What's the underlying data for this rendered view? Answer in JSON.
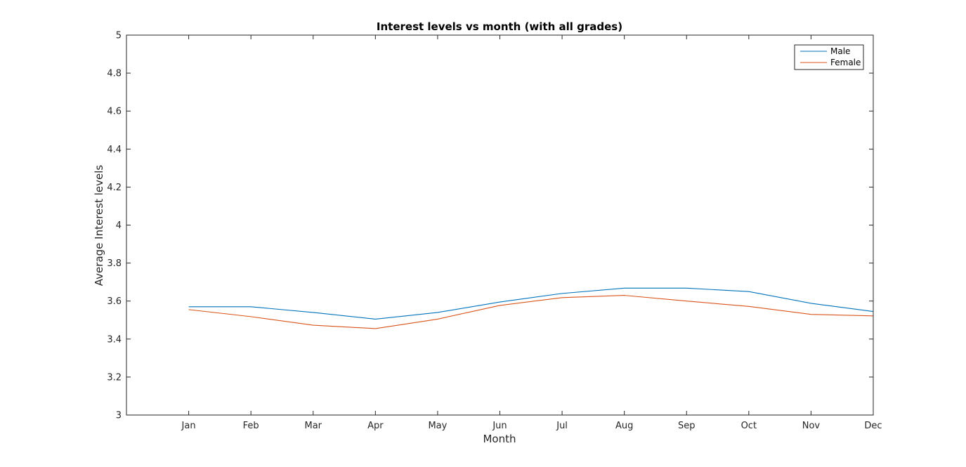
{
  "chart_data": {
    "type": "line",
    "title": "Interest levels vs month (with all grades)",
    "xlabel": "Month",
    "ylabel": "Average Interest levels",
    "categories": [
      "Jan",
      "Feb",
      "Mar",
      "Apr",
      "May",
      "Jun",
      "Jul",
      "Aug",
      "Sep",
      "Oct",
      "Nov",
      "Dec"
    ],
    "x_range": [
      0,
      12
    ],
    "ylim": [
      3,
      5
    ],
    "yticks": [
      "3",
      "3.2",
      "3.4",
      "3.6",
      "3.8",
      "4",
      "4.2",
      "4.4",
      "4.6",
      "4.8",
      "5"
    ],
    "grid": false,
    "legend_position": "top-right",
    "series": [
      {
        "name": "Male",
        "color": "#0072BD",
        "values": [
          3.57,
          3.57,
          3.54,
          3.505,
          3.54,
          3.595,
          3.64,
          3.668,
          3.668,
          3.65,
          3.588,
          3.545
        ]
      },
      {
        "name": "Female",
        "color": "#D95319",
        "values": [
          3.555,
          3.518,
          3.473,
          3.455,
          3.505,
          3.577,
          3.618,
          3.63,
          3.6,
          3.572,
          3.53,
          3.522
        ]
      }
    ]
  }
}
